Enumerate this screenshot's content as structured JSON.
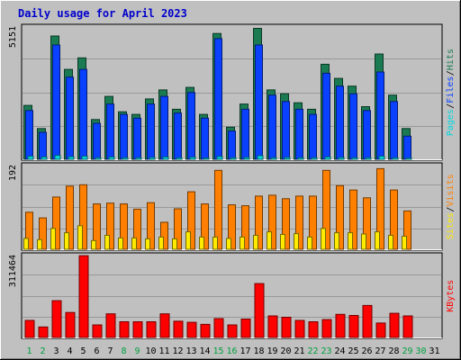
{
  "chart_data": {
    "type": "bar",
    "title": "Daily usage for April 2023",
    "x": [
      "1",
      "2",
      "3",
      "4",
      "5",
      "6",
      "7",
      "8",
      "9",
      "10",
      "11",
      "12",
      "13",
      "14",
      "15",
      "16",
      "17",
      "18",
      "19",
      "20",
      "21",
      "22",
      "23",
      "24",
      "25",
      "26",
      "27",
      "28",
      "29",
      "30",
      "31"
    ],
    "weekend_days": [
      "1",
      "2",
      "8",
      "9",
      "15",
      "16",
      "22",
      "23",
      "29",
      "30"
    ],
    "panels": [
      {
        "id": "top",
        "ymax_label": "5151",
        "ymax": 5151,
        "series": [
          {
            "name": "Hits",
            "color": "#1a7a52",
            "values": [
              2100,
              1200,
              4800,
              3500,
              3950,
              1550,
              2450,
              1850,
              1750,
              2350,
              2700,
              1950,
              2800,
              1750,
              4900,
              1250,
              2150,
              5100,
              2700,
              2550,
              2200,
              1950,
              3700,
              3150,
              2850,
              2050,
              4100,
              2500,
              1200,
              0,
              0
            ]
          },
          {
            "name": "Files",
            "color": "#0a40ff",
            "values": [
              1900,
              1050,
              4450,
              3200,
              3500,
              1400,
              2150,
              1750,
              1600,
              2150,
              2450,
              1800,
              2600,
              1600,
              4700,
              1100,
              1950,
              4450,
              2500,
              2250,
              1950,
              1750,
              3350,
              2850,
              2550,
              1900,
              3400,
              2250,
              900,
              0,
              0
            ]
          },
          {
            "name": "Pages",
            "color": "#00d8e0",
            "values": [
              120,
              90,
              150,
              100,
              120,
              60,
              90,
              60,
              60,
              70,
              90,
              60,
              80,
              50,
              110,
              60,
              70,
              140,
              60,
              70,
              60,
              60,
              90,
              70,
              60,
              60,
              120,
              60,
              50,
              0,
              0
            ]
          }
        ],
        "legend": [
          "Pages",
          "Files",
          "Hits"
        ]
      },
      {
        "id": "mid",
        "ymax_label": "192",
        "ymax": 192,
        "series": [
          {
            "name": "Visits",
            "color": "#ff8000",
            "values": [
              85,
              72,
              120,
              145,
              148,
              104,
              106,
              104,
              92,
              107,
              62,
              93,
              132,
              104,
              181,
              102,
              100,
              122,
              124,
              116,
              122,
              122,
              181,
              146,
              136,
              118,
              185,
              136,
              88,
              0,
              0
            ]
          },
          {
            "name": "Sites",
            "color": "#ffea00",
            "values": [
              25,
              22,
              48,
              38,
              54,
              20,
              32,
              26,
              26,
              24,
              28,
              24,
              40,
              28,
              28,
              25,
              28,
              32,
              40,
              34,
              36,
              28,
              48,
              38,
              38,
              35,
              40,
              32,
              30,
              0,
              0
            ]
          }
        ],
        "legend": [
          "Sites",
          "Visits"
        ]
      },
      {
        "id": "bot",
        "ymax_label": "311464",
        "ymax": 311464,
        "series": [
          {
            "name": "KBytes",
            "color": "#ff0000",
            "values": [
              65000,
              40000,
              140000,
              95000,
              311000,
              48000,
              90000,
              60000,
              60000,
              60000,
              90000,
              62000,
              58000,
              50000,
              72000,
              48000,
              70000,
              205000,
              82000,
              77000,
              65000,
              60000,
              68000,
              88000,
              84000,
              122000,
              55000,
              92000,
              82000,
              0,
              0
            ]
          }
        ],
        "legend": [
          "KBytes"
        ]
      }
    ],
    "colors": {
      "background": "#c0c0c0",
      "grid": "#999999",
      "title": "#0000cc",
      "weekday_label": "#000000",
      "weekend_label": "#00a040"
    }
  }
}
